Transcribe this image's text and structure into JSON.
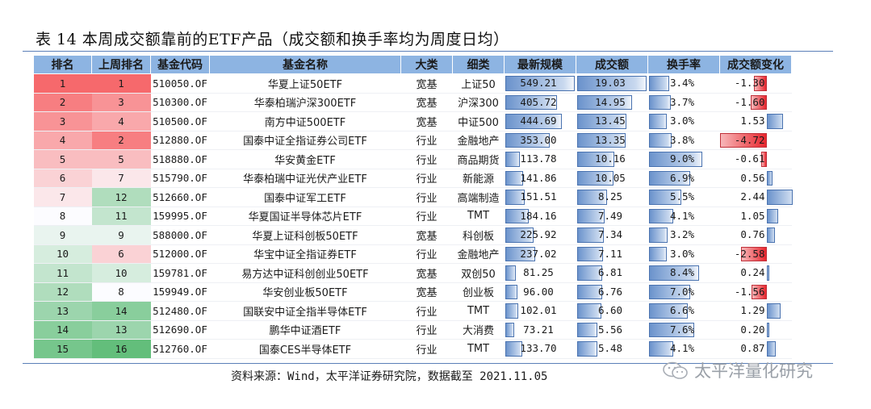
{
  "title": "表 14   本周成交额靠前的ETF产品（成交额和换手率均为周度日均）",
  "headers": [
    "排名",
    "上周排名",
    "基金代码",
    "基金名称",
    "大类",
    "细类",
    "最新规模",
    "成交额",
    "换手率",
    "成交额变化"
  ],
  "colors": {
    "header_bg": "#8db4e2",
    "rule": "#5b7fb8",
    "bar_blue": "#6b93cc",
    "bar_red": "#e8262e"
  },
  "rows": [
    {
      "rank": "1",
      "prev": "1",
      "code": "510050.OF",
      "name": "华夏上证50ETF",
      "cat": "宽基",
      "sub": "上证50",
      "scale": "549.21",
      "volume": "19.03",
      "turnover": "3.4%",
      "change": "-1.30"
    },
    {
      "rank": "2",
      "prev": "3",
      "code": "510300.OF",
      "name": "华泰柏瑞沪深300ETF",
      "cat": "宽基",
      "sub": "沪深300",
      "scale": "405.72",
      "volume": "14.95",
      "turnover": "3.7%",
      "change": "-1.60"
    },
    {
      "rank": "3",
      "prev": "4",
      "code": "510500.OF",
      "name": "南方中证500ETF",
      "cat": "宽基",
      "sub": "中证500",
      "scale": "444.69",
      "volume": "13.45",
      "turnover": "3.0%",
      "change": "1.53"
    },
    {
      "rank": "4",
      "prev": "2",
      "code": "512880.OF",
      "name": "国泰中证全指证券公司ETF",
      "cat": "行业",
      "sub": "金融地产",
      "scale": "353.00",
      "volume": "13.35",
      "turnover": "3.8%",
      "change": "-4.72"
    },
    {
      "rank": "5",
      "prev": "5",
      "code": "518880.OF",
      "name": "华安黄金ETF",
      "cat": "行业",
      "sub": "商品期货",
      "scale": "113.78",
      "volume": "10.16",
      "turnover": "9.0%",
      "change": "-0.61"
    },
    {
      "rank": "6",
      "prev": "7",
      "code": "515790.OF",
      "name": "华泰柏瑞中证光伏产业ETF",
      "cat": "行业",
      "sub": "新能源",
      "scale": "141.86",
      "volume": "10.05",
      "turnover": "6.9%",
      "change": "0.56"
    },
    {
      "rank": "7",
      "prev": "12",
      "code": "512660.OF",
      "name": "国泰中证军工ETF",
      "cat": "行业",
      "sub": "高端制造",
      "scale": "151.51",
      "volume": "8.25",
      "turnover": "5.5%",
      "change": "2.44"
    },
    {
      "rank": "8",
      "prev": "11",
      "code": "159995.OF",
      "name": "华夏国证半导体芯片ETF",
      "cat": "行业",
      "sub": "TMT",
      "scale": "184.16",
      "volume": "7.49",
      "turnover": "4.1%",
      "change": "1.05"
    },
    {
      "rank": "9",
      "prev": "9",
      "code": "588000.OF",
      "name": "华夏上证科创板50ETF",
      "cat": "宽基",
      "sub": "科创板",
      "scale": "225.92",
      "volume": "7.34",
      "turnover": "3.2%",
      "change": "0.76"
    },
    {
      "rank": "10",
      "prev": "6",
      "code": "512000.OF",
      "name": "华宝中证全指证券ETF",
      "cat": "行业",
      "sub": "金融地产",
      "scale": "237.02",
      "volume": "7.11",
      "turnover": "3.0%",
      "change": "-2.58"
    },
    {
      "rank": "11",
      "prev": "10",
      "code": "159781.OF",
      "name": "易方达中证科创创业50ETF",
      "cat": "宽基",
      "sub": "双创50",
      "scale": "81.25",
      "volume": "6.81",
      "turnover": "8.4%",
      "change": "0.24"
    },
    {
      "rank": "12",
      "prev": "8",
      "code": "159949.OF",
      "name": "华安创业板50ETF",
      "cat": "宽基",
      "sub": "创业板",
      "scale": "96.00",
      "volume": "6.76",
      "turnover": "7.0%",
      "change": "-1.56"
    },
    {
      "rank": "13",
      "prev": "14",
      "code": "512480.OF",
      "name": "国联安中证全指半导体ETF",
      "cat": "行业",
      "sub": "TMT",
      "scale": "102.01",
      "volume": "6.60",
      "turnover": "6.6%",
      "change": "1.29"
    },
    {
      "rank": "14",
      "prev": "13",
      "code": "512690.OF",
      "name": "鹏华中证酒ETF",
      "cat": "行业",
      "sub": "大消费",
      "scale": "73.21",
      "volume": "5.56",
      "turnover": "7.6%",
      "change": "0.20"
    },
    {
      "rank": "15",
      "prev": "16",
      "code": "512760.OF",
      "name": "国泰CES半导体ETF",
      "cat": "行业",
      "sub": "TMT",
      "scale": "133.70",
      "volume": "5.48",
      "turnover": "4.1%",
      "change": "0.87"
    }
  ],
  "source": "资料来源：Wind，太平洋证券研究院，数据截至 2021.11.05",
  "watermark": "太平洋量化研究",
  "watermark_icon": "wechat-icon"
}
